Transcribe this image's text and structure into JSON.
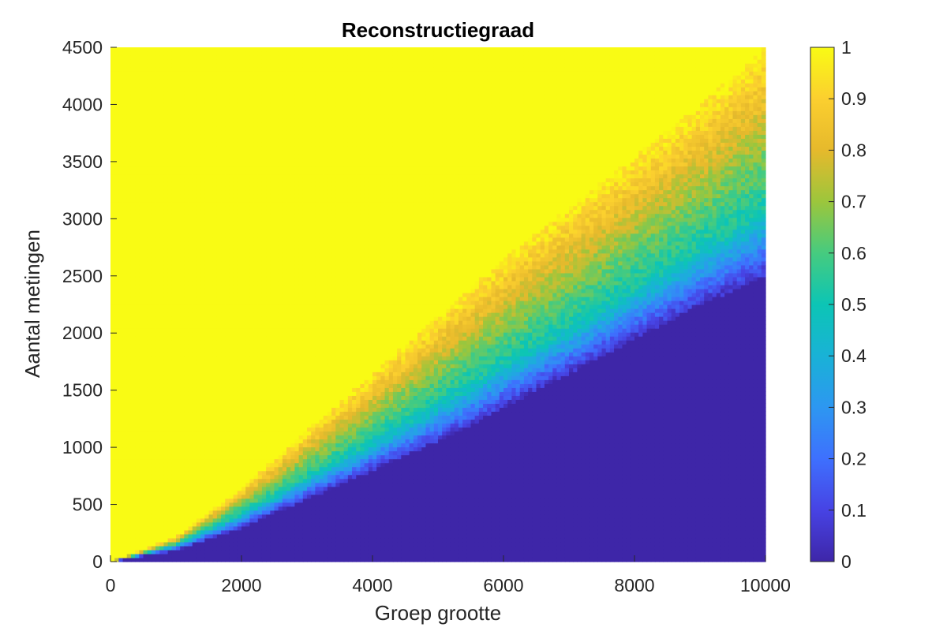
{
  "chart_data": {
    "type": "heatmap",
    "title": "Reconstructiegraad",
    "xlabel": "Groep grootte",
    "ylabel": "Aantal metingen",
    "xlim": [
      0,
      10000
    ],
    "ylim": [
      0,
      4500
    ],
    "x_ticks": [
      "0",
      "2000",
      "4000",
      "6000",
      "8000",
      "10000"
    ],
    "y_ticks": [
      "0",
      "500",
      "1000",
      "1500",
      "2000",
      "2500",
      "3000",
      "3500",
      "4000",
      "4500"
    ],
    "colorbar": {
      "range": [
        0,
        1
      ],
      "ticks": [
        "0",
        "0.1",
        "0.2",
        "0.3",
        "0.4",
        "0.5",
        "0.6",
        "0.7",
        "0.8",
        "0.9",
        "1"
      ]
    },
    "colormap": "parula",
    "transition": {
      "description_values": "phase transition boundary: measurements (y) where reconstruction rate is 0.5, as a function of group size (x)",
      "x": [
        0,
        1000,
        2000,
        3000,
        4000,
        5000,
        6000,
        7000,
        8000,
        9000,
        10000
      ],
      "y_at_rate_0_05": [
        0,
        100,
        300,
        550,
        800,
        1050,
        1350,
        1650,
        1950,
        2250,
        2500
      ],
      "y_at_rate_0_5": [
        0,
        150,
        420,
        730,
        1050,
        1380,
        1720,
        2050,
        2380,
        2720,
        3050
      ],
      "y_at_rate_0_95": [
        0,
        220,
        650,
        1150,
        1650,
        2150,
        2650,
        3100,
        3550,
        4000,
        4500
      ]
    }
  }
}
